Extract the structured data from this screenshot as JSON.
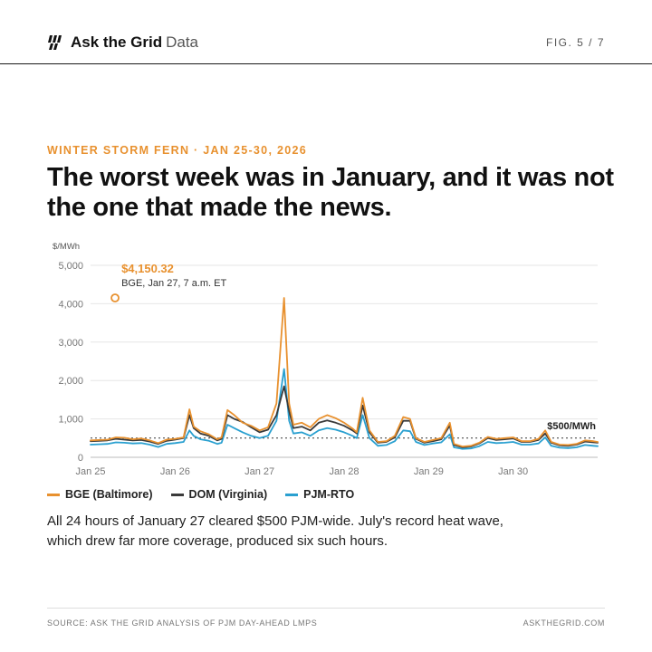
{
  "header": {
    "brand_name": "Ask the Grid",
    "brand_sub": "Data",
    "fig": "FIG. 5 / 7"
  },
  "icons": {
    "logo": "bolt-bars-logo-icon"
  },
  "kicker": "WINTER STORM FERN · JAN 25-30, 2026",
  "title": "The worst week was in January, and it was not the one that made the news.",
  "caption": "All 24 hours of January 27 cleared $500 PJM-wide. July's record heat wave, which drew far more coverage, produced six such hours.",
  "footer": {
    "source": "SOURCE: ASK THE GRID ANALYSIS OF PJM DAY-AHEAD LMPS",
    "site": "ASKTHEGRID.COM"
  },
  "colors": {
    "accent": "#e8912f",
    "bge": "#e8912f",
    "dom": "#3a3a3a",
    "pjm": "#2aa0d0"
  },
  "chart_data": {
    "type": "line",
    "ylabel": "$/MWh",
    "ylim": [
      0,
      5000
    ],
    "yticks": [
      0,
      1000,
      2000,
      3000,
      4000,
      5000
    ],
    "ytick_labels": [
      "0",
      "1,000",
      "2,000",
      "3,000",
      "4,000",
      "5,000"
    ],
    "xlim": [
      0,
      6
    ],
    "xticks": [
      0,
      1,
      2,
      3,
      4,
      5
    ],
    "xtick_labels": [
      "Jan 25",
      "Jan 26",
      "Jan 27",
      "Jan 28",
      "Jan 29",
      "Jan 30"
    ],
    "threshold": {
      "value": 500,
      "label": "$500/MWh"
    },
    "annotation": {
      "x": 0.29,
      "y": 4150.32,
      "value_label": "$4,150.32",
      "detail": "BGE, Jan 27, 7 a.m. ET"
    },
    "series": [
      {
        "name": "BGE (Baltimore)",
        "color": "#e8912f",
        "points": [
          [
            0,
            440
          ],
          [
            0.1,
            450
          ],
          [
            0.2,
            460
          ],
          [
            0.3,
            520
          ],
          [
            0.4,
            510
          ],
          [
            0.5,
            470
          ],
          [
            0.6,
            490
          ],
          [
            0.7,
            440
          ],
          [
            0.8,
            370
          ],
          [
            0.9,
            460
          ],
          [
            1.0,
            480
          ],
          [
            1.1,
            520
          ],
          [
            1.17,
            1250
          ],
          [
            1.22,
            800
          ],
          [
            1.3,
            680
          ],
          [
            1.4,
            600
          ],
          [
            1.5,
            470
          ],
          [
            1.55,
            520
          ],
          [
            1.62,
            1230
          ],
          [
            1.7,
            1100
          ],
          [
            1.8,
            900
          ],
          [
            1.9,
            820
          ],
          [
            2.0,
            700
          ],
          [
            2.1,
            780
          ],
          [
            2.2,
            1400
          ],
          [
            2.29,
            4150.32
          ],
          [
            2.35,
            1400
          ],
          [
            2.4,
            850
          ],
          [
            2.5,
            900
          ],
          [
            2.6,
            780
          ],
          [
            2.7,
            1000
          ],
          [
            2.8,
            1100
          ],
          [
            2.9,
            1020
          ],
          [
            3.0,
            900
          ],
          [
            3.1,
            750
          ],
          [
            3.15,
            650
          ],
          [
            3.22,
            1550
          ],
          [
            3.3,
            700
          ],
          [
            3.4,
            400
          ],
          [
            3.5,
            420
          ],
          [
            3.6,
            560
          ],
          [
            3.7,
            1050
          ],
          [
            3.78,
            1000
          ],
          [
            3.85,
            500
          ],
          [
            3.95,
            400
          ],
          [
            4.05,
            450
          ],
          [
            4.15,
            500
          ],
          [
            4.25,
            900
          ],
          [
            4.3,
            350
          ],
          [
            4.4,
            280
          ],
          [
            4.5,
            300
          ],
          [
            4.6,
            380
          ],
          [
            4.7,
            530
          ],
          [
            4.8,
            480
          ],
          [
            4.9,
            500
          ],
          [
            5.0,
            520
          ],
          [
            5.1,
            420
          ],
          [
            5.2,
            420
          ],
          [
            5.3,
            480
          ],
          [
            5.38,
            700
          ],
          [
            5.45,
            400
          ],
          [
            5.55,
            330
          ],
          [
            5.65,
            320
          ],
          [
            5.75,
            350
          ],
          [
            5.85,
            440
          ],
          [
            5.95,
            420
          ],
          [
            6.0,
            400
          ]
        ]
      },
      {
        "name": "DOM (Virginia)",
        "color": "#3a3a3a",
        "points": [
          [
            0,
            420
          ],
          [
            0.1,
            430
          ],
          [
            0.2,
            440
          ],
          [
            0.3,
            480
          ],
          [
            0.4,
            460
          ],
          [
            0.5,
            440
          ],
          [
            0.6,
            450
          ],
          [
            0.7,
            410
          ],
          [
            0.8,
            350
          ],
          [
            0.9,
            430
          ],
          [
            1.0,
            460
          ],
          [
            1.1,
            500
          ],
          [
            1.17,
            1100
          ],
          [
            1.22,
            760
          ],
          [
            1.3,
            620
          ],
          [
            1.4,
            560
          ],
          [
            1.5,
            440
          ],
          [
            1.55,
            480
          ],
          [
            1.62,
            1100
          ],
          [
            1.7,
            1000
          ],
          [
            1.8,
            920
          ],
          [
            1.9,
            780
          ],
          [
            2.0,
            650
          ],
          [
            2.1,
            720
          ],
          [
            2.2,
            1100
          ],
          [
            2.29,
            1850
          ],
          [
            2.35,
            1200
          ],
          [
            2.4,
            760
          ],
          [
            2.5,
            800
          ],
          [
            2.6,
            700
          ],
          [
            2.7,
            900
          ],
          [
            2.8,
            960
          ],
          [
            2.9,
            900
          ],
          [
            3.0,
            820
          ],
          [
            3.1,
            700
          ],
          [
            3.15,
            620
          ],
          [
            3.22,
            1350
          ],
          [
            3.3,
            650
          ],
          [
            3.4,
            380
          ],
          [
            3.5,
            400
          ],
          [
            3.6,
            520
          ],
          [
            3.7,
            950
          ],
          [
            3.78,
            950
          ],
          [
            3.85,
            480
          ],
          [
            3.95,
            380
          ],
          [
            4.05,
            420
          ],
          [
            4.15,
            470
          ],
          [
            4.25,
            830
          ],
          [
            4.3,
            320
          ],
          [
            4.4,
            260
          ],
          [
            4.5,
            280
          ],
          [
            4.6,
            360
          ],
          [
            4.7,
            500
          ],
          [
            4.8,
            450
          ],
          [
            4.9,
            470
          ],
          [
            5.0,
            490
          ],
          [
            5.1,
            400
          ],
          [
            5.2,
            400
          ],
          [
            5.3,
            450
          ],
          [
            5.38,
            620
          ],
          [
            5.45,
            380
          ],
          [
            5.55,
            310
          ],
          [
            5.65,
            300
          ],
          [
            5.75,
            330
          ],
          [
            5.85,
            410
          ],
          [
            5.95,
            390
          ],
          [
            6.0,
            380
          ]
        ]
      },
      {
        "name": "PJM-RTO",
        "color": "#2aa0d0",
        "points": [
          [
            0,
            330
          ],
          [
            0.1,
            340
          ],
          [
            0.2,
            350
          ],
          [
            0.3,
            390
          ],
          [
            0.4,
            380
          ],
          [
            0.5,
            360
          ],
          [
            0.6,
            370
          ],
          [
            0.7,
            330
          ],
          [
            0.8,
            270
          ],
          [
            0.9,
            350
          ],
          [
            1.0,
            370
          ],
          [
            1.1,
            400
          ],
          [
            1.17,
            700
          ],
          [
            1.22,
            560
          ],
          [
            1.3,
            470
          ],
          [
            1.4,
            430
          ],
          [
            1.5,
            350
          ],
          [
            1.55,
            380
          ],
          [
            1.62,
            850
          ],
          [
            1.7,
            760
          ],
          [
            1.8,
            650
          ],
          [
            1.9,
            560
          ],
          [
            2.0,
            500
          ],
          [
            2.1,
            560
          ],
          [
            2.2,
            950
          ],
          [
            2.29,
            2300
          ],
          [
            2.35,
            950
          ],
          [
            2.4,
            620
          ],
          [
            2.5,
            650
          ],
          [
            2.6,
            560
          ],
          [
            2.7,
            700
          ],
          [
            2.8,
            760
          ],
          [
            2.9,
            720
          ],
          [
            3.0,
            650
          ],
          [
            3.1,
            560
          ],
          [
            3.15,
            500
          ],
          [
            3.22,
            1100
          ],
          [
            3.3,
            500
          ],
          [
            3.4,
            300
          ],
          [
            3.5,
            320
          ],
          [
            3.6,
            420
          ],
          [
            3.7,
            700
          ],
          [
            3.78,
            680
          ],
          [
            3.85,
            400
          ],
          [
            3.95,
            320
          ],
          [
            4.05,
            360
          ],
          [
            4.15,
            390
          ],
          [
            4.25,
            600
          ],
          [
            4.3,
            260
          ],
          [
            4.4,
            220
          ],
          [
            4.5,
            230
          ],
          [
            4.6,
            290
          ],
          [
            4.7,
            400
          ],
          [
            4.8,
            370
          ],
          [
            4.9,
            380
          ],
          [
            5.0,
            400
          ],
          [
            5.1,
            330
          ],
          [
            5.2,
            330
          ],
          [
            5.3,
            360
          ],
          [
            5.38,
            520
          ],
          [
            5.45,
            300
          ],
          [
            5.55,
            250
          ],
          [
            5.65,
            240
          ],
          [
            5.75,
            260
          ],
          [
            5.85,
            320
          ],
          [
            5.95,
            300
          ],
          [
            6.0,
            290
          ]
        ]
      }
    ]
  }
}
